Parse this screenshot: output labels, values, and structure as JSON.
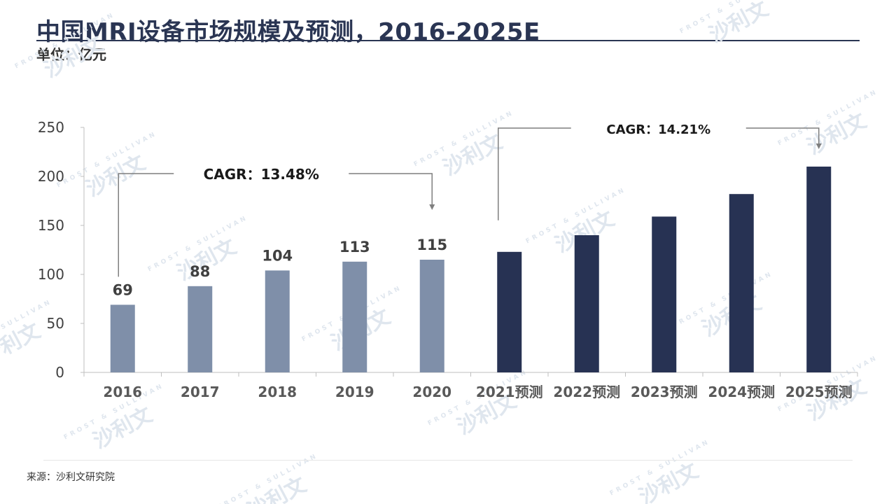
{
  "title": "中国MRI设备市场规模及预测，2016-2025E",
  "unit": "单位：亿元",
  "source": "来源：沙利文研究院",
  "watermark": "FROST & SULLIVAN 沙利文",
  "colors": {
    "historical": "#7f8fa9",
    "forecast": "#273253",
    "axis": "#bfbfbf",
    "text": "#404040",
    "annotation": "#7f7f7f"
  },
  "chart_data": {
    "type": "bar",
    "categories": [
      "2016",
      "2017",
      "2018",
      "2019",
      "2020",
      "2021预测",
      "2022预测",
      "2023预测",
      "2024预测",
      "2025预测"
    ],
    "values": [
      69,
      88,
      104,
      113,
      115,
      123,
      140,
      159,
      182,
      210
    ],
    "series": [
      {
        "values": [
          69,
          88,
          104,
          113,
          115,
          null,
          null,
          null,
          null,
          null
        ]
      },
      {
        "values": [
          null,
          null,
          null,
          null,
          null,
          123,
          140,
          159,
          182,
          210
        ]
      }
    ],
    "data_labels": [
      "69",
      "88",
      "104",
      "113",
      "115",
      "",
      "",
      "",
      "",
      ""
    ],
    "ylim": [
      0,
      250
    ],
    "yticks": [
      0,
      50,
      100,
      150,
      200,
      250
    ],
    "grid": false,
    "annotations": [
      {
        "text": "CAGR：13.48%",
        "from": "2016",
        "to": "2020"
      },
      {
        "text": "CAGR：14.21%",
        "from": "2021预测",
        "to": "2025预测"
      }
    ]
  }
}
